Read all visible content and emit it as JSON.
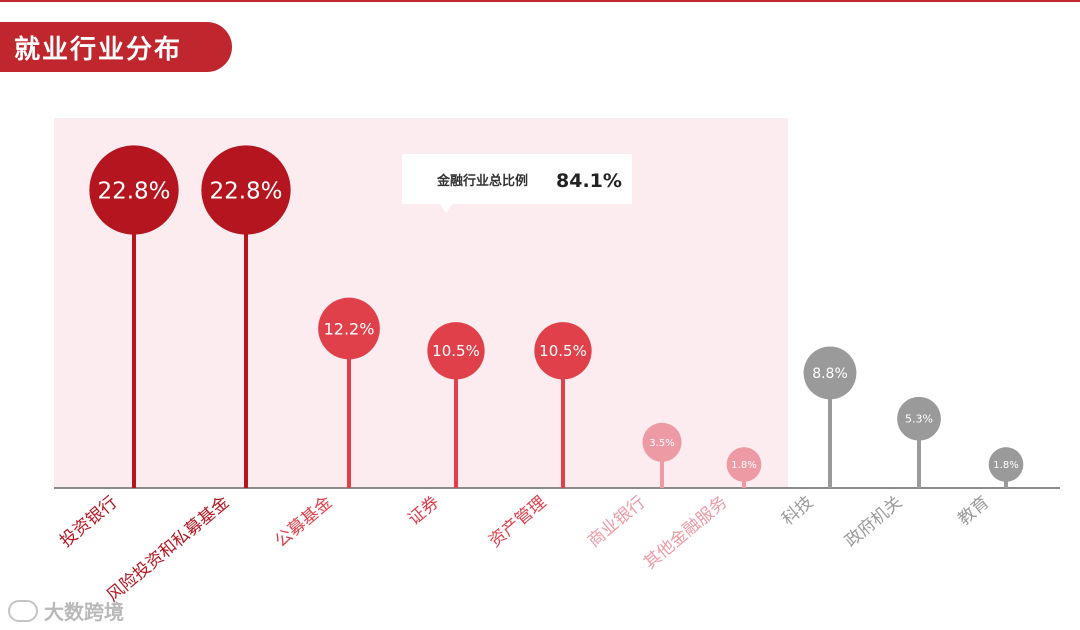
{
  "page": {
    "section_title": "就业行业分布",
    "watermark": "大数跨境"
  },
  "callout": {
    "label": "金融行业总比例",
    "value": "84.1%"
  },
  "colors": {
    "accent": "#c0262d",
    "finance_bg": "#fdecef",
    "grey": "#9a9a9a",
    "axis": "#8a8a8a"
  },
  "chart_data": {
    "type": "lollipop",
    "title": "就业行业分布",
    "categories": [
      "投资银行",
      "风险投资和私募基金",
      "公募基金",
      "证券",
      "资产管理",
      "商业银行",
      "其他金融服务",
      "科技",
      "政府机关",
      "教育"
    ],
    "values": [
      22.8,
      22.8,
      12.2,
      10.5,
      10.5,
      3.5,
      1.8,
      8.8,
      5.3,
      1.8
    ],
    "labels": [
      "22.8%",
      "22.8%",
      "12.2%",
      "10.5%",
      "10.5%",
      "3.5%",
      "1.8%",
      "8.8%",
      "5.3%",
      "1.8%"
    ],
    "groups": [
      "finance",
      "finance",
      "finance",
      "finance",
      "finance",
      "finance",
      "finance",
      "other",
      "other",
      "other"
    ],
    "colors": [
      "#b5151f",
      "#b5151f",
      "#e0404a",
      "#e0404a",
      "#e0404a",
      "#ee9aa4",
      "#ee9aa4",
      "#9a9a9a",
      "#9a9a9a",
      "#9a9a9a"
    ],
    "unit": "%",
    "ylim": [
      0,
      25
    ],
    "grid": false,
    "legend": "none"
  }
}
